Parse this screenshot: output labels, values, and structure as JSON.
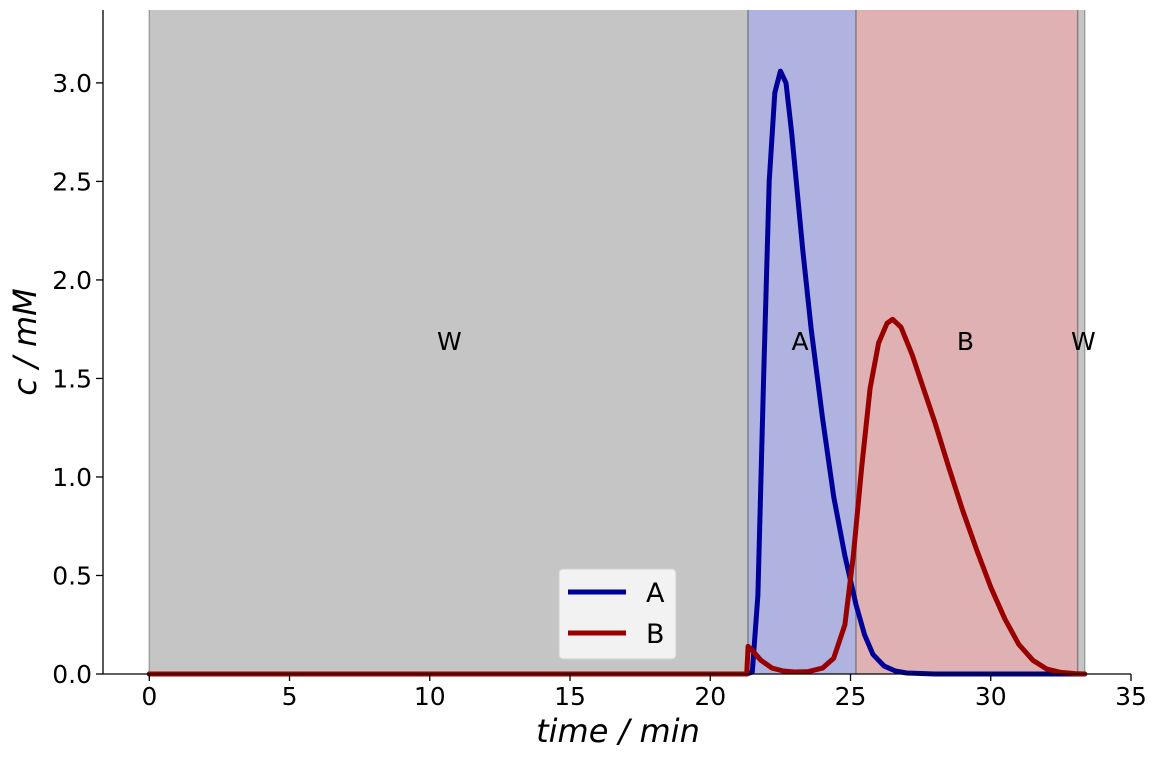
{
  "chart_data": {
    "type": "line",
    "title": "",
    "xlabel": "time / min",
    "ylabel": "c / mM",
    "xlim": [
      -1.65,
      35
    ],
    "ylim": [
      0,
      3.37
    ],
    "xticks": [
      0,
      5,
      10,
      15,
      20,
      25,
      30,
      35
    ],
    "yticks": [
      0.0,
      0.5,
      1.0,
      1.5,
      2.0,
      2.5,
      3.0
    ],
    "xtick_labels": [
      "0",
      "5",
      "10",
      "15",
      "20",
      "25",
      "30",
      "35"
    ],
    "ytick_labels": [
      "0.0",
      "0.5",
      "1.0",
      "1.5",
      "2.0",
      "2.5",
      "3.0"
    ],
    "grid": false,
    "legend_position": "lower-center",
    "regions": [
      {
        "label": "W",
        "x_start": 0,
        "x_end": 21.35,
        "color": "#c5c5c5"
      },
      {
        "label": "A",
        "x_start": 21.35,
        "x_end": 25.2,
        "color": "#b0b3e0"
      },
      {
        "label": "B",
        "x_start": 25.2,
        "x_end": 33.1,
        "color": "#e0b1b2"
      },
      {
        "label": "W",
        "x_start": 33.1,
        "x_end": 33.35,
        "color": "#c5c5c5"
      }
    ],
    "region_label_y": 1.69,
    "region_label_x": [
      10.7,
      23.2,
      29.1,
      33.3
    ],
    "series": [
      {
        "name": "A",
        "color": "#000099",
        "points": [
          [
            0,
            0
          ],
          [
            21.3,
            0
          ],
          [
            21.5,
            0.01
          ],
          [
            21.7,
            0.4
          ],
          [
            21.9,
            1.5
          ],
          [
            22.1,
            2.5
          ],
          [
            22.3,
            2.95
          ],
          [
            22.5,
            3.06
          ],
          [
            22.7,
            3.0
          ],
          [
            22.9,
            2.75
          ],
          [
            23.1,
            2.45
          ],
          [
            23.3,
            2.15
          ],
          [
            23.6,
            1.75
          ],
          [
            24.0,
            1.3
          ],
          [
            24.4,
            0.9
          ],
          [
            24.8,
            0.6
          ],
          [
            25.2,
            0.35
          ],
          [
            25.5,
            0.2
          ],
          [
            25.8,
            0.1
          ],
          [
            26.2,
            0.04
          ],
          [
            26.6,
            0.015
          ],
          [
            27.0,
            0.005
          ],
          [
            28.0,
            0
          ],
          [
            33.35,
            0
          ]
        ]
      },
      {
        "name": "B",
        "color": "#990000",
        "points": [
          [
            0,
            0
          ],
          [
            21.3,
            0
          ],
          [
            21.35,
            0.14
          ],
          [
            21.5,
            0.12
          ],
          [
            21.8,
            0.07
          ],
          [
            22.2,
            0.03
          ],
          [
            22.6,
            0.015
          ],
          [
            23.0,
            0.01
          ],
          [
            23.5,
            0.012
          ],
          [
            24.0,
            0.03
          ],
          [
            24.4,
            0.08
          ],
          [
            24.8,
            0.25
          ],
          [
            25.1,
            0.6
          ],
          [
            25.4,
            1.05
          ],
          [
            25.7,
            1.45
          ],
          [
            26.0,
            1.68
          ],
          [
            26.3,
            1.78
          ],
          [
            26.5,
            1.8
          ],
          [
            26.8,
            1.76
          ],
          [
            27.2,
            1.62
          ],
          [
            27.6,
            1.45
          ],
          [
            28.0,
            1.28
          ],
          [
            28.5,
            1.05
          ],
          [
            29.0,
            0.83
          ],
          [
            29.5,
            0.63
          ],
          [
            30.0,
            0.44
          ],
          [
            30.5,
            0.28
          ],
          [
            31.0,
            0.15
          ],
          [
            31.5,
            0.07
          ],
          [
            32.0,
            0.025
          ],
          [
            32.5,
            0.008
          ],
          [
            33.0,
            0.002
          ],
          [
            33.35,
            0
          ]
        ]
      }
    ]
  }
}
